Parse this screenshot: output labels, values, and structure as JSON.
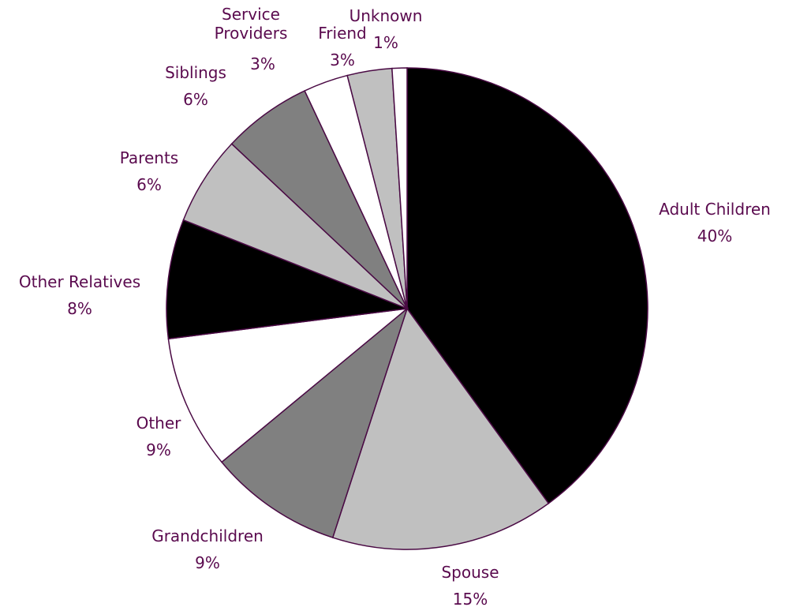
{
  "chart_data": {
    "type": "pie",
    "title": "",
    "slices": [
      {
        "label": [
          "Adult Children"
        ],
        "value": 40,
        "display": "40%",
        "color": "#000000"
      },
      {
        "label": [
          "Spouse"
        ],
        "value": 15,
        "display": "15%",
        "color": "#c0c0c0"
      },
      {
        "label": [
          "Grandchildren"
        ],
        "value": 9,
        "display": "9%",
        "color": "#808080"
      },
      {
        "label": [
          "Other"
        ],
        "value": 9,
        "display": "9%",
        "color": "#ffffff"
      },
      {
        "label": [
          "Other Relatives"
        ],
        "value": 8,
        "display": "8%",
        "color": "#000000"
      },
      {
        "label": [
          "Parents"
        ],
        "value": 6,
        "display": "6%",
        "color": "#c0c0c0"
      },
      {
        "label": [
          "Siblings"
        ],
        "value": 6,
        "display": "6%",
        "color": "#808080"
      },
      {
        "label": [
          "Service",
          "Providers"
        ],
        "value": 3,
        "display": "3%",
        "color": "#ffffff"
      },
      {
        "label": [
          "Friend"
        ],
        "value": 3,
        "display": "3%",
        "color": "#c0c0c0"
      },
      {
        "label": [
          "Unknown"
        ],
        "value": 1,
        "display": "1%",
        "color": "#ffffff"
      }
    ],
    "text_color": "#5a0a4e",
    "edge_color": "#4a0a44"
  }
}
